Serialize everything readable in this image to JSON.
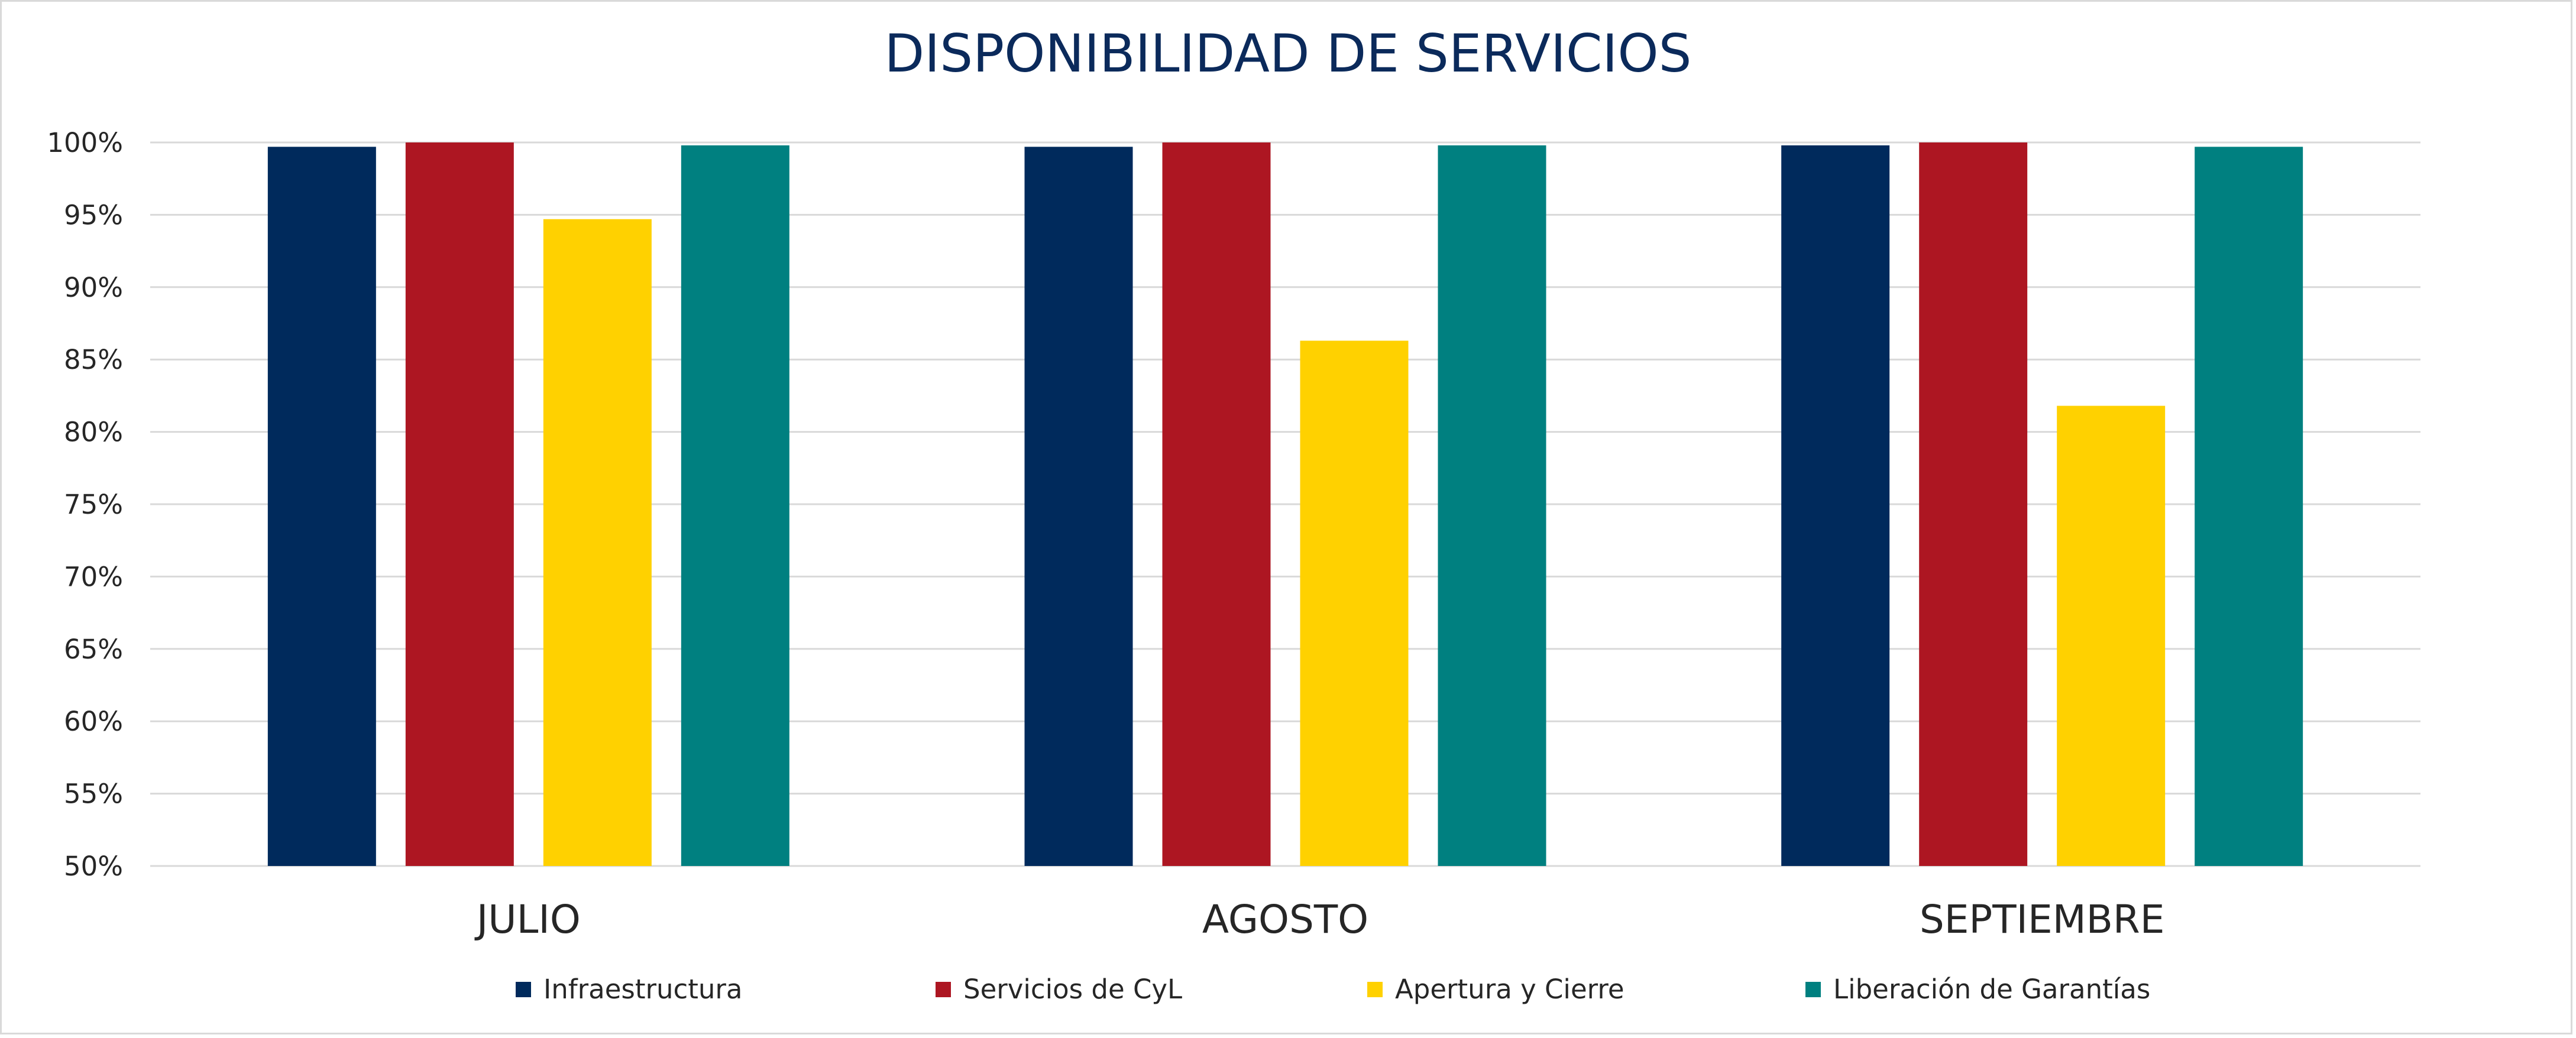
{
  "chart_data": {
    "type": "bar",
    "title": "DISPONIBILIDAD DE SERVICIOS",
    "xlabel": "",
    "ylabel": "",
    "categories": [
      "JULIO",
      "AGOSTO",
      "SEPTIEMBRE"
    ],
    "series": [
      {
        "name": "Infraestructura",
        "color": "#002a5c",
        "values": [
          99.7,
          99.7,
          99.8
        ]
      },
      {
        "name": "Servicios de CyL",
        "color": "#ad1622",
        "values": [
          100.0,
          100.0,
          100.0
        ]
      },
      {
        "name": "Apertura y Cierre",
        "color": "#ffd100",
        "values": [
          94.7,
          86.3,
          81.8
        ]
      },
      {
        "name": "Liberación de Garantías",
        "color": "#008080",
        "values": [
          99.8,
          99.8,
          99.7
        ]
      }
    ],
    "ylim": [
      50,
      100
    ],
    "y_ticks": [
      "50%",
      "55%",
      "60%",
      "65%",
      "70%",
      "75%",
      "80%",
      "85%",
      "90%",
      "95%",
      "100%"
    ],
    "y_tick_values": [
      50,
      55,
      60,
      65,
      70,
      75,
      80,
      85,
      90,
      95,
      100
    ],
    "grid": true,
    "legend_position": "bottom"
  }
}
